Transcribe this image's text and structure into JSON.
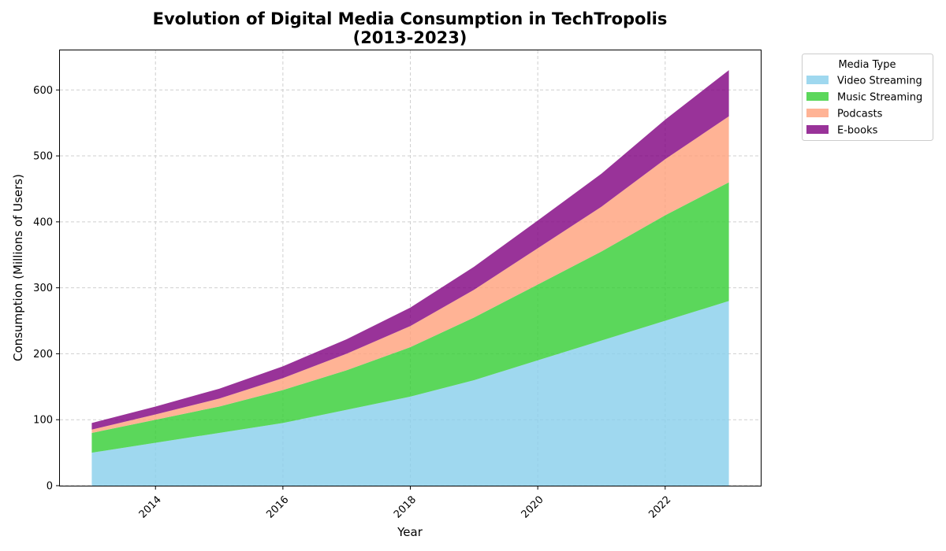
{
  "chart_data": {
    "type": "area",
    "title": "Evolution of Digital Media Consumption in TechTropolis",
    "subtitle": "(2013-2023)",
    "xlabel": "Year",
    "ylabel": "Consumption (Millions of Users)",
    "x": [
      2013,
      2014,
      2015,
      2016,
      2017,
      2018,
      2019,
      2020,
      2021,
      2022,
      2023
    ],
    "xlim": [
      2012.5,
      2023.5
    ],
    "ylim": [
      0,
      660
    ],
    "x_ticks": [
      2014,
      2016,
      2018,
      2020,
      2022
    ],
    "y_ticks": [
      0,
      100,
      200,
      300,
      400,
      500,
      600
    ],
    "stacked": true,
    "grid": true,
    "legend": {
      "title": "Media Type",
      "placement": "outside-top-right"
    },
    "series": [
      {
        "name": "Video Streaming",
        "color": "#87CEEB",
        "values": [
          50,
          65,
          80,
          95,
          115,
          135,
          160,
          190,
          220,
          250,
          280
        ]
      },
      {
        "name": "Music Streaming",
        "color": "#32CD32",
        "values": [
          30,
          35,
          40,
          50,
          60,
          75,
          95,
          115,
          135,
          160,
          180
        ]
      },
      {
        "name": "Podcasts",
        "color": "#FFA07A",
        "values": [
          5,
          8,
          12,
          18,
          25,
          32,
          42,
          55,
          68,
          85,
          100
        ]
      },
      {
        "name": "E-books",
        "color": "#800080",
        "values": [
          10,
          12,
          15,
          18,
          22,
          28,
          35,
          42,
          50,
          60,
          70
        ]
      }
    ]
  }
}
